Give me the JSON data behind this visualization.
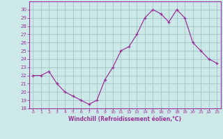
{
  "x": [
    0,
    1,
    2,
    3,
    4,
    5,
    6,
    7,
    8,
    9,
    10,
    11,
    12,
    13,
    14,
    15,
    16,
    17,
    18,
    19,
    20,
    21,
    22,
    23
  ],
  "y": [
    22,
    22,
    22.5,
    21,
    20,
    19.5,
    19,
    18.5,
    19,
    21.5,
    23,
    25,
    25.5,
    27,
    29,
    30,
    29.5,
    28.5,
    30,
    29,
    26,
    25,
    24,
    23.5
  ],
  "line_color": "#993399",
  "marker": "+",
  "bg_color": "#cce8e8",
  "grid_color": "#aacccc",
  "xlabel": "Windchill (Refroidissement éolien,°C)",
  "xlabel_color": "#993399",
  "tick_color": "#993399",
  "spine_color": "#993399",
  "ylim": [
    18,
    31
  ],
  "yticks": [
    18,
    19,
    20,
    21,
    22,
    23,
    24,
    25,
    26,
    27,
    28,
    29,
    30
  ],
  "xlim": [
    -0.5,
    23.5
  ],
  "xticks": [
    0,
    1,
    2,
    3,
    4,
    5,
    6,
    7,
    8,
    9,
    10,
    11,
    12,
    13,
    14,
    15,
    16,
    17,
    18,
    19,
    20,
    21,
    22,
    23
  ]
}
